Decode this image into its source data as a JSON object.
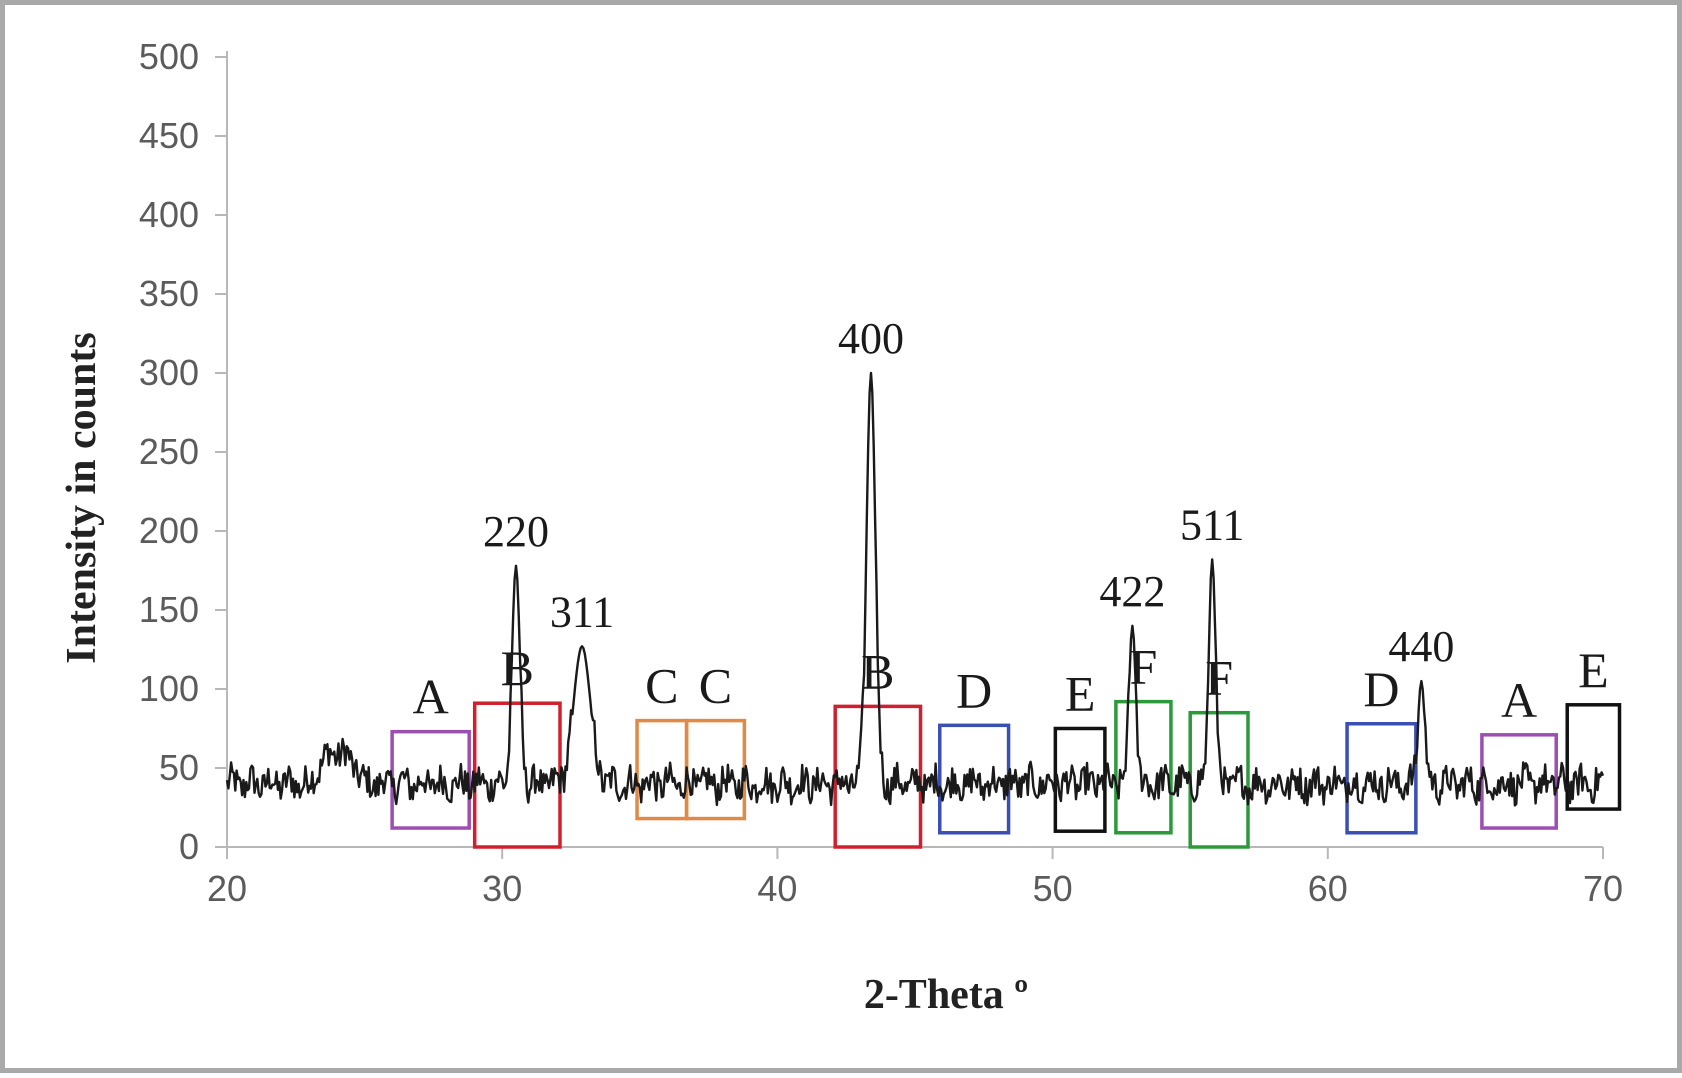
{
  "chart_data": {
    "type": "line",
    "xlabel": "2-Theta º",
    "ylabel": "Intensity in counts",
    "xlim": [
      20,
      70
    ],
    "ylim": [
      0,
      500
    ],
    "x_ticks": [
      "20",
      "30",
      "40",
      "50",
      "60",
      "70"
    ],
    "y_ticks": [
      "0",
      "50",
      "100",
      "150",
      "200",
      "250",
      "300",
      "350",
      "400",
      "450",
      "500"
    ],
    "grid": false,
    "line_color": "#1a1a1a",
    "baseline": 40,
    "noise_amplitude": 10,
    "hump": {
      "x_start": 23,
      "x_end": 25,
      "height": 20
    },
    "peaks": [
      {
        "label": "220",
        "x": 30.5,
        "y": 178,
        "width": 0.14
      },
      {
        "label": "311",
        "x": 32.9,
        "y": 127,
        "width": 0.3
      },
      {
        "label": "400",
        "x": 43.4,
        "y": 300,
        "width": 0.16
      },
      {
        "label": "422",
        "x": 52.9,
        "y": 140,
        "width": 0.12
      },
      {
        "label": "511",
        "x": 55.8,
        "y": 182,
        "width": 0.12
      },
      {
        "label": "440",
        "x": 63.4,
        "y": 105,
        "width": 0.12
      }
    ],
    "regions": [
      {
        "label": "A",
        "x0": 26.0,
        "x1": 28.8,
        "y0": 12,
        "y1": 73,
        "color": "#9b4fb0"
      },
      {
        "label": "B",
        "x0": 29.0,
        "x1": 32.1,
        "y0": 0,
        "y1": 91,
        "color": "#d0202e"
      },
      {
        "label": "C",
        "x0": 34.9,
        "x1": 36.7,
        "y0": 18,
        "y1": 80,
        "color": "#e08a45"
      },
      {
        "label": "C",
        "x0": 36.7,
        "x1": 38.8,
        "y0": 18,
        "y1": 80,
        "color": "#e08a45"
      },
      {
        "label": "B",
        "x0": 42.1,
        "x1": 45.2,
        "y0": 0,
        "y1": 89,
        "color": "#d0202e"
      },
      {
        "label": "D",
        "x0": 45.9,
        "x1": 48.4,
        "y0": 9,
        "y1": 77,
        "color": "#3a4fb4"
      },
      {
        "label": "E",
        "x0": 50.1,
        "x1": 51.9,
        "y0": 10,
        "y1": 75,
        "color": "#111111"
      },
      {
        "label": "F",
        "x0": 52.3,
        "x1": 54.3,
        "y0": 9,
        "y1": 92,
        "color": "#2a9a3a"
      },
      {
        "label": "F",
        "x0": 55.0,
        "x1": 57.1,
        "y0": 0,
        "y1": 85,
        "color": "#2a9a3a"
      },
      {
        "label": "D",
        "x0": 60.7,
        "x1": 63.2,
        "y0": 9,
        "y1": 78,
        "color": "#3a4fb4"
      },
      {
        "label": "A",
        "x0": 65.6,
        "x1": 68.3,
        "y0": 12,
        "y1": 71,
        "color": "#9b4fb0"
      },
      {
        "label": "E",
        "x0": 68.7,
        "x1": 70.6,
        "y0": 24,
        "y1": 90,
        "color": "#111111"
      }
    ]
  }
}
